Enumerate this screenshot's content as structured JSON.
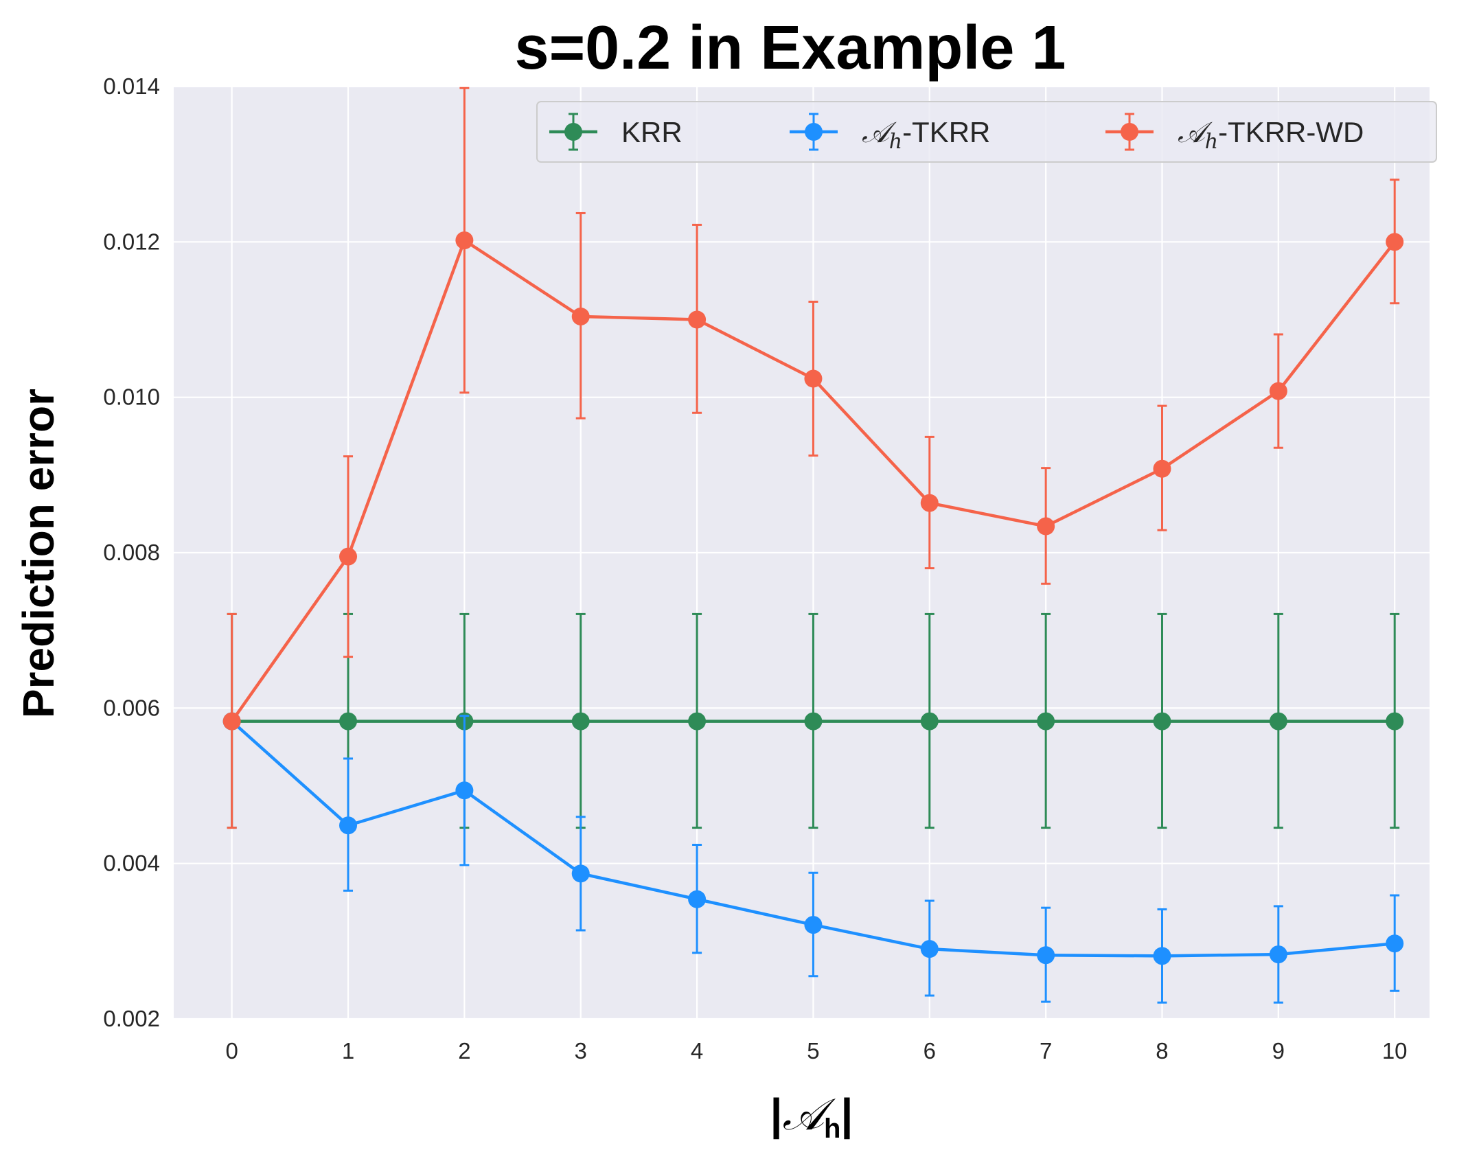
{
  "chart_data": {
    "type": "line",
    "title": "s=0.2 in Example 1",
    "xlabel_prefix": "|",
    "xlabel_symbol": "𝒜",
    "xlabel_sub": "h",
    "xlabel_suffix": "|",
    "ylabel": "Prediction error",
    "x": [
      0,
      1,
      2,
      3,
      4,
      5,
      6,
      7,
      8,
      9,
      10
    ],
    "xticks": [
      "0",
      "1",
      "2",
      "3",
      "4",
      "5",
      "6",
      "7",
      "8",
      "9",
      "10"
    ],
    "xlim": [
      -0.5,
      10.3
    ],
    "ylim": [
      0.002,
      0.014
    ],
    "yticks": [
      "0.002",
      "0.004",
      "0.006",
      "0.008",
      "0.010",
      "0.012",
      "0.014"
    ],
    "grid": true,
    "legend_position": "top-right",
    "series": [
      {
        "name": "KRR",
        "legend_symbol": "",
        "legend_sub": "",
        "legend_suffix": "KRR",
        "color": "#2e8b57",
        "values": [
          0.00583,
          0.00583,
          0.00583,
          0.00583,
          0.00583,
          0.00583,
          0.00583,
          0.00583,
          0.00583,
          0.00583,
          0.00583
        ],
        "err_low": [
          0.00446,
          0.00446,
          0.00446,
          0.00446,
          0.00446,
          0.00446,
          0.00446,
          0.00446,
          0.00446,
          0.00446,
          0.00446
        ],
        "err_high": [
          0.00721,
          0.00721,
          0.00721,
          0.00721,
          0.00721,
          0.00721,
          0.00721,
          0.00721,
          0.00721,
          0.00721,
          0.00721
        ]
      },
      {
        "name": "𝒜h-TKRR",
        "legend_symbol": "𝒜",
        "legend_sub": "h",
        "legend_suffix": "-TKRR",
        "color": "#1e90ff",
        "values": [
          0.00583,
          0.00449,
          0.00494,
          0.00387,
          0.00354,
          0.00321,
          0.0029,
          0.00282,
          0.00281,
          0.00283,
          0.00297
        ],
        "err_low": [
          0.00583,
          0.00365,
          0.00398,
          0.00314,
          0.00285,
          0.00255,
          0.0023,
          0.00222,
          0.00221,
          0.00221,
          0.00236
        ],
        "err_high": [
          0.00583,
          0.00535,
          0.0059,
          0.0046,
          0.00424,
          0.00388,
          0.00352,
          0.00343,
          0.00341,
          0.00345,
          0.00359
        ]
      },
      {
        "name": "𝒜h-TKRR-WD",
        "legend_symbol": "𝒜",
        "legend_sub": "h",
        "legend_suffix": "-TKRR-WD",
        "color": "#f5634a",
        "values": [
          0.00583,
          0.00795,
          0.01202,
          0.01104,
          0.011,
          0.01024,
          0.00864,
          0.00834,
          0.00908,
          0.01008,
          0.012
        ],
        "err_low": [
          0.00446,
          0.00666,
          0.01006,
          0.00973,
          0.0098,
          0.00925,
          0.0078,
          0.0076,
          0.00829,
          0.00935,
          0.01121
        ],
        "err_high": [
          0.00721,
          0.00924,
          0.01398,
          0.01237,
          0.01222,
          0.01123,
          0.00949,
          0.00909,
          0.00989,
          0.01081,
          0.0128
        ]
      }
    ]
  }
}
